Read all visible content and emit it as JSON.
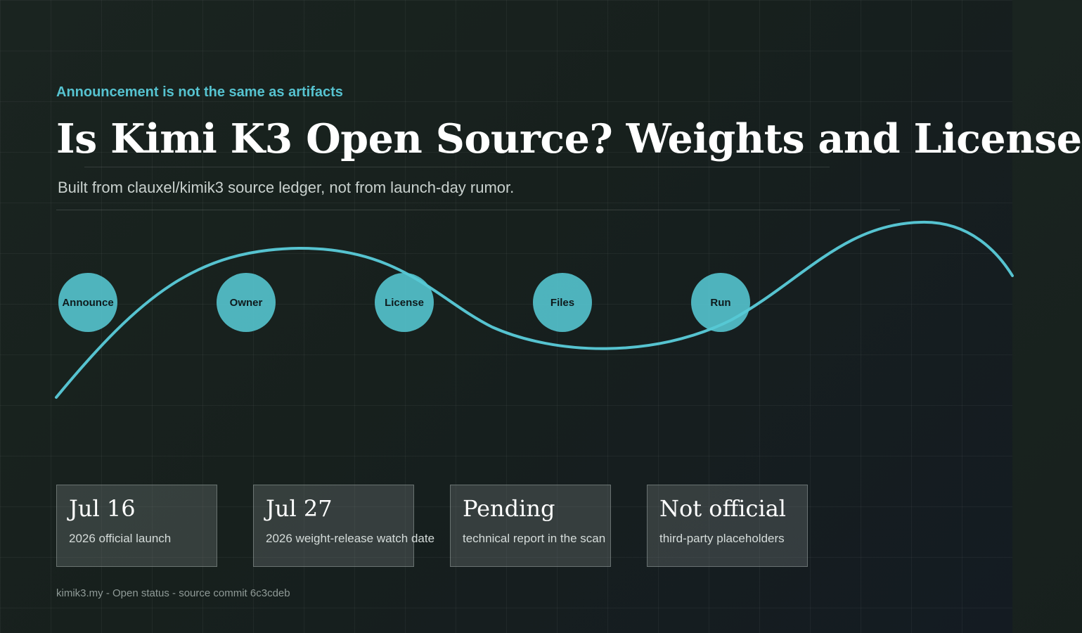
{
  "eyebrow": "Announcement is not the same as artifacts",
  "title": "Is Kimi K3 Open Source? Weights and License",
  "subtitle": "Built from clauxel/kimik3 source ledger, not from launch-day rumor.",
  "accent_color": "#56c3d0",
  "timeline": {
    "nodes": [
      {
        "label": "Announce"
      },
      {
        "label": "Owner"
      },
      {
        "label": "License"
      },
      {
        "label": "Files"
      },
      {
        "label": "Run"
      }
    ]
  },
  "stats": [
    {
      "value": "Jul 16",
      "label": "2026 official launch"
    },
    {
      "value": "Jul 27",
      "label": "2026 weight-release watch date"
    },
    {
      "value": "Pending",
      "label": "technical report in the scan"
    },
    {
      "value": "Not official",
      "label": "third-party placeholders"
    }
  ],
  "footer": "kimik3.my - Open status - source commit 6c3cdeb"
}
